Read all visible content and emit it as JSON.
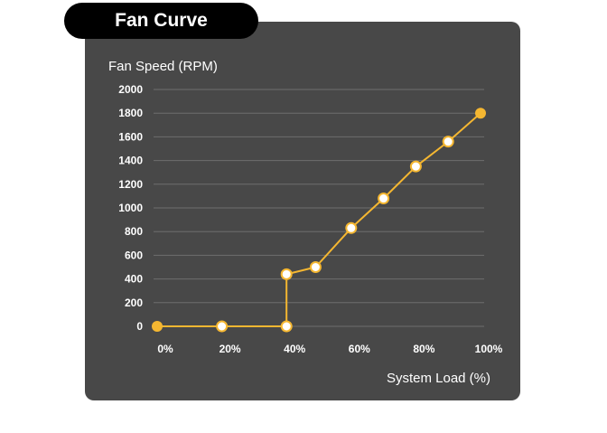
{
  "tab": {
    "title": "Fan Curve"
  },
  "colors": {
    "accent": "#f5b731",
    "panel": "#484848",
    "tab": "#000000",
    "open_point_fill": "#ffffff"
  },
  "chart_data": {
    "type": "line",
    "title": "Fan Curve",
    "xlabel": "System Load (%)",
    "ylabel": "Fan Speed (RPM)",
    "xlim": [
      0,
      100
    ],
    "ylim": [
      0,
      2000
    ],
    "x_ticks": [
      "0%",
      "20%",
      "40%",
      "60%",
      "80%",
      "100%"
    ],
    "y_ticks": [
      "0",
      "200",
      "400",
      "600",
      "800",
      "1000",
      "1200",
      "1400",
      "1600",
      "1800",
      "2000"
    ],
    "grid": true,
    "series": [
      {
        "points": [
          {
            "x": 0,
            "y": 0,
            "marker": "filled"
          },
          {
            "x": 20,
            "y": 0,
            "marker": "open"
          },
          {
            "x": 40,
            "y": 0,
            "marker": "open"
          },
          {
            "x": 40,
            "y": 440,
            "marker": "open"
          },
          {
            "x": 49,
            "y": 500,
            "marker": "open"
          },
          {
            "x": 60,
            "y": 830,
            "marker": "open"
          },
          {
            "x": 70,
            "y": 1080,
            "marker": "open"
          },
          {
            "x": 80,
            "y": 1350,
            "marker": "open"
          },
          {
            "x": 90,
            "y": 1560,
            "marker": "open"
          },
          {
            "x": 100,
            "y": 1800,
            "marker": "filled"
          }
        ]
      }
    ]
  }
}
